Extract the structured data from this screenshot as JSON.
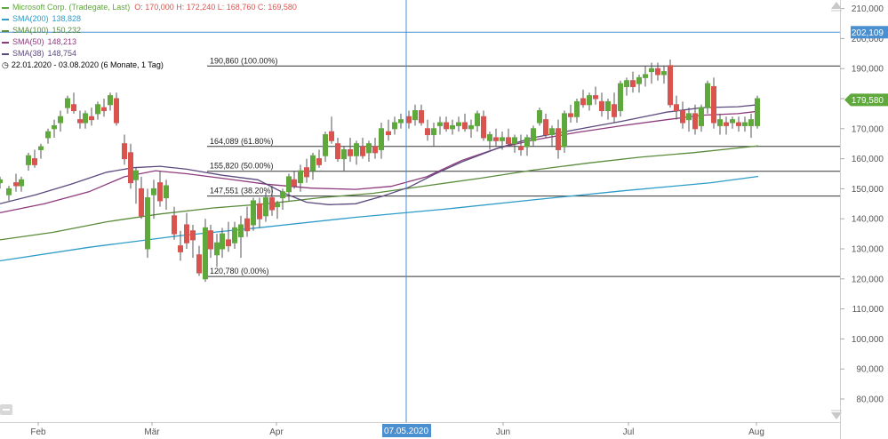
{
  "header": {
    "title": "Microsoft Corp. (Tradegate, Last)",
    "ohlc": "O: 170,000  H: 172,240  L: 168,760  C: 169,580",
    "range": "22.01.2020 - 03.08.2020 (6 Monate, 1 Tag)"
  },
  "indicators": [
    {
      "label": "SMA(200)",
      "value": "138,828",
      "color": "#2e9cc8"
    },
    {
      "label": "SMA(100)",
      "value": "150,232",
      "color": "#5a8c3c"
    },
    {
      "label": "SMA(50)",
      "value": "148,213",
      "color": "#8e3a7d"
    },
    {
      "label": "SMA(38)",
      "value": "148,754",
      "color": "#5c4a7e"
    }
  ],
  "chart_data": {
    "type": "candlestick",
    "ylim": [
      75000,
      212000
    ],
    "y_ticks": [
      "80,000",
      "90,000",
      "100,000",
      "110,000",
      "120,000",
      "130,000",
      "140,000",
      "150,000",
      "160,000",
      "170,000",
      "180,000",
      "190,000",
      "200,000",
      "210,000"
    ],
    "x_labels": [
      "Feb",
      "Mär",
      "Apr",
      "Jun",
      "Jul",
      "Aug"
    ],
    "crosshair": {
      "x_label": "07.05.2020",
      "y_label": "202,109",
      "y": 202109
    },
    "last_price": {
      "label": "179,580",
      "y": 179580,
      "color": "#5fa83c"
    },
    "fib_levels": [
      {
        "label": "190,860 (100.00%)",
        "y": 190860
      },
      {
        "label": "164,089 (61.80%)",
        "y": 164089
      },
      {
        "label": "155,820 (50.00%)",
        "y": 155820
      },
      {
        "label": "147,551 (38.20%)",
        "y": 147551
      },
      {
        "label": "120,780 (0.00%)",
        "y": 120780
      }
    ],
    "colors": {
      "up": "#5fa83c",
      "down": "#d9534f",
      "crosshair": "#4a8fd0",
      "grid": "#e8e8e8"
    }
  }
}
